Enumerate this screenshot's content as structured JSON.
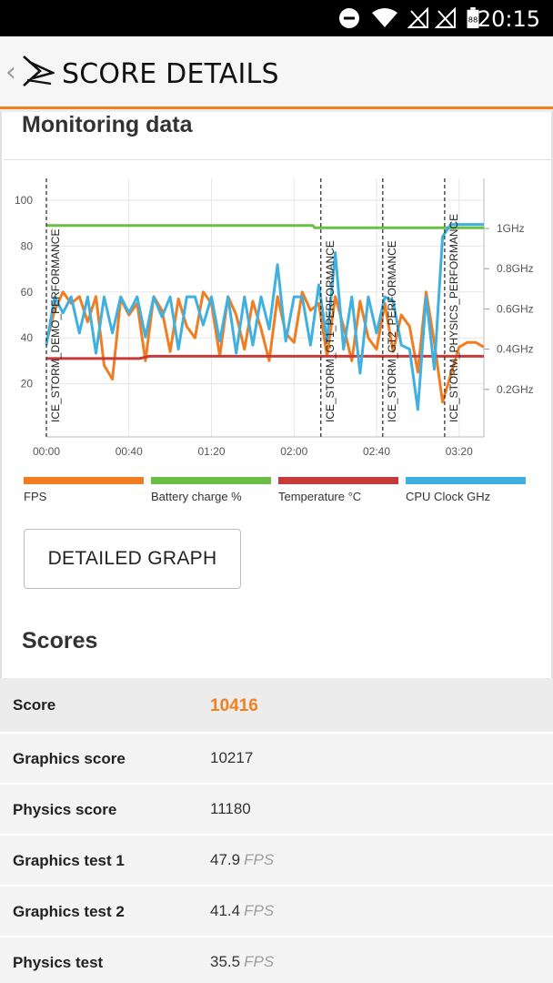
{
  "status_bar": {
    "time": "20:15",
    "battery": "88"
  },
  "app_bar": {
    "back": "‹",
    "title": "SCORE DETAILS",
    "logo_icon": "3dmark-logo"
  },
  "monitoring": {
    "title": "Monitoring data",
    "button_label": "DETAILED GRAPH"
  },
  "chart_data": {
    "type": "line",
    "x_tick_labels": [
      "00:00",
      "00:40",
      "01:20",
      "02:00",
      "02:40",
      "03:20"
    ],
    "xlim": [
      "00:00",
      "03:32"
    ],
    "y_left_ticks": [
      20,
      40,
      60,
      80,
      100
    ],
    "y_left_lim": [
      0,
      100
    ],
    "y_right_ticks": [
      "0.2GHz",
      "0.4GHz",
      "0.6GHz",
      "0.8GHz",
      "1GHz"
    ],
    "y_right_lim": [
      0,
      1.1
    ],
    "grid": true,
    "markers": [
      {
        "label": "ICE_STORM_DEMO_PERFORMANCE",
        "x": "00:00"
      },
      {
        "label": "ICE_STORM_GT1_PERFORMANCE",
        "x": "02:13"
      },
      {
        "label": "ICE_STORM_GT2_PERFORMANCE",
        "x": "02:43"
      },
      {
        "label": "ICE_STORM_PHYSICS_PERFORMANCE",
        "x": "03:13"
      }
    ],
    "series": [
      {
        "name": "FPS",
        "color": "#f07d21",
        "axis": "left",
        "x": [
          0,
          4,
          8,
          12,
          16,
          20,
          24,
          28,
          32,
          36,
          40,
          44,
          48,
          52,
          56,
          60,
          64,
          68,
          72,
          76,
          80,
          84,
          88,
          92,
          96,
          100,
          104,
          108,
          112,
          116,
          120,
          124,
          128,
          132,
          136,
          140,
          144,
          148,
          152,
          156,
          160,
          164,
          168,
          172,
          176,
          180,
          184,
          188,
          192,
          196,
          200,
          204,
          208,
          212
        ],
        "values": [
          38,
          52,
          60,
          55,
          58,
          47,
          58,
          28,
          22,
          57,
          50,
          55,
          30,
          58,
          52,
          34,
          57,
          45,
          40,
          60,
          55,
          32,
          58,
          50,
          35,
          56,
          44,
          30,
          58,
          42,
          38,
          60,
          52,
          55,
          32,
          58,
          45,
          30,
          56,
          40,
          35,
          55,
          34,
          50,
          45,
          25,
          60,
          38,
          12,
          24,
          36,
          38,
          38,
          36
        ]
      },
      {
        "name": "Battery charge %",
        "color": "#6cbf45",
        "axis": "left",
        "x": [
          0,
          129,
          130,
          212
        ],
        "values": [
          89,
          89,
          88,
          88
        ]
      },
      {
        "name": "Temperature °C",
        "color": "#c93a3a",
        "axis": "left",
        "x": [
          0,
          45,
          50,
          212
        ],
        "values": [
          31,
          31,
          32,
          32
        ]
      },
      {
        "name": "CPU Clock GHz",
        "color": "#3fb0e0",
        "axis": "right",
        "x": [
          0,
          4,
          8,
          12,
          16,
          20,
          24,
          28,
          32,
          36,
          40,
          44,
          48,
          52,
          56,
          60,
          64,
          68,
          72,
          76,
          80,
          84,
          88,
          92,
          96,
          100,
          104,
          108,
          112,
          116,
          120,
          124,
          128,
          132,
          136,
          140,
          144,
          148,
          152,
          156,
          160,
          164,
          168,
          172,
          176,
          180,
          184,
          188,
          192,
          196,
          200,
          204,
          208,
          212
        ],
        "values": [
          0.42,
          0.66,
          0.58,
          0.66,
          0.48,
          0.66,
          0.38,
          0.66,
          0.48,
          0.66,
          0.58,
          0.66,
          0.46,
          0.66,
          0.56,
          0.66,
          0.4,
          0.66,
          0.66,
          0.52,
          0.66,
          0.44,
          0.66,
          0.38,
          0.66,
          0.42,
          0.66,
          0.5,
          0.82,
          0.44,
          0.66,
          0.66,
          0.42,
          0.72,
          0.44,
          0.88,
          0.4,
          0.66,
          0.28,
          0.66,
          0.48,
          0.66,
          0.64,
          0.42,
          0.4,
          0.1,
          0.66,
          0.3,
          0.96,
          1.02,
          1.02,
          1.02,
          1.02,
          1.02
        ]
      }
    ]
  },
  "scores": {
    "title": "Scores",
    "rows": [
      {
        "name": "Score",
        "value": "10416",
        "unit": ""
      },
      {
        "name": "Graphics score",
        "value": "10217",
        "unit": ""
      },
      {
        "name": "Physics score",
        "value": "11180",
        "unit": ""
      },
      {
        "name": "Graphics test 1",
        "value": "47.9",
        "unit": "FPS"
      },
      {
        "name": "Graphics test 2",
        "value": "41.4",
        "unit": "FPS"
      },
      {
        "name": "Physics test",
        "value": "35.5",
        "unit": "FPS"
      }
    ]
  }
}
